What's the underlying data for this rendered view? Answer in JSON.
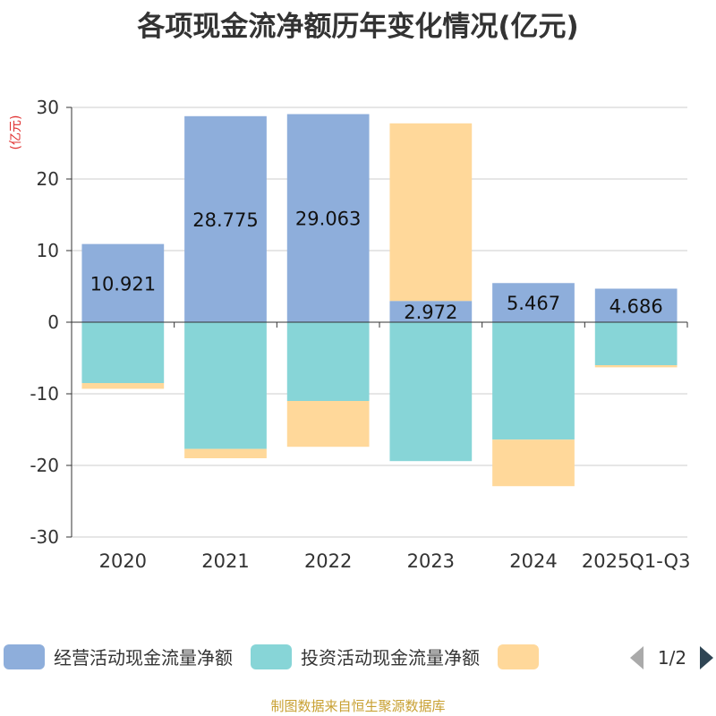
{
  "chart_data": {
    "type": "bar",
    "stacked": true,
    "title": "各项现金流净额历年变化情况(亿元)",
    "ylabel": "(亿元)",
    "xlabel": "",
    "ylim": [
      -30,
      30
    ],
    "yticks": [
      30,
      20,
      10,
      0,
      -10,
      -20,
      -30
    ],
    "grid": true,
    "categories": [
      "2020",
      "2021",
      "2022",
      "2023",
      "2024",
      "2025Q1-Q3"
    ],
    "series": [
      {
        "name": "经营活动现金流量净额",
        "color": "#8eaedb",
        "values": [
          10.921,
          28.775,
          29.063,
          2.972,
          5.467,
          4.686
        ],
        "labels": [
          "10.921",
          "28.775",
          "29.063",
          "2.972",
          "5.467",
          "4.686"
        ]
      },
      {
        "name": "投资活动现金流量净额",
        "color": "#87d5d7",
        "values": [
          -8.5,
          -17.7,
          -11.0,
          -19.4,
          -16.4,
          -6.0
        ],
        "labels": []
      },
      {
        "name": "",
        "color": "#ffd89a",
        "values": [
          -0.8,
          -1.3,
          -6.4,
          24.8,
          -6.5,
          -0.3
        ],
        "labels": []
      }
    ],
    "legend": {
      "position": "bottom",
      "page": "1/2"
    }
  },
  "footer": {
    "source": "制图数据来自恒生聚源数据库"
  }
}
